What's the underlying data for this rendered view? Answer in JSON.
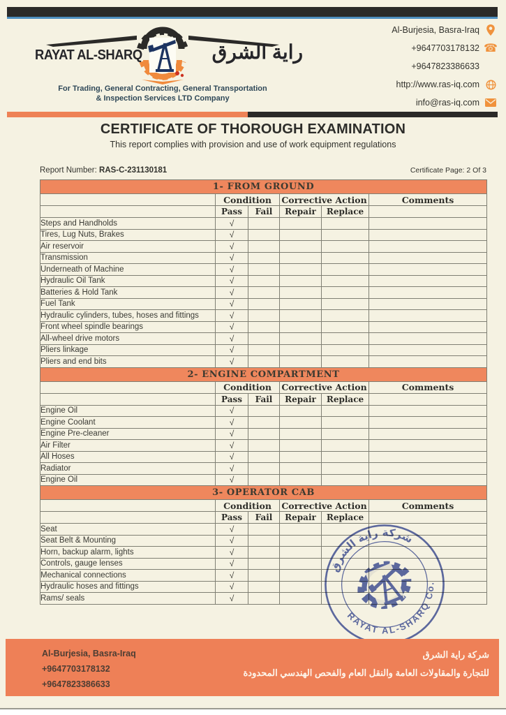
{
  "brand": {
    "name_en": "RAYAT AL-SHARQ",
    "name_ar": "راية الشرق",
    "tagline_line1": "For Trading, General Contracting, General Transportation",
    "tagline_line2": "& Inspection Services LTD Company"
  },
  "contact": {
    "address": "Al-Burjesia, Basra-Iraq",
    "phone1": "+9647703178132",
    "phone2": "+9647823386633",
    "website": "http://www.ras-iq.com",
    "email": "info@ras-iq.com",
    "icons": [
      "location-pin-icon",
      "phone-icon",
      "globe-icon",
      "envelope-icon"
    ]
  },
  "title": "CERTIFICATE OF THOROUGH EXAMINATION",
  "subtitle": "This report complies with provision and use of work equipment regulations",
  "report": {
    "number_label": "Report Number: ",
    "number": "RAS-C-231130181",
    "page_label": "Certificate Page: ",
    "page": "2 Of 3"
  },
  "table": {
    "col_headers": {
      "condition": "Condition",
      "corrective": "Corrective Action",
      "comments": "Comments",
      "pass": "Pass",
      "fail": "Fail",
      "repair": "Repair",
      "replace": "Replace"
    },
    "sections": [
      {
        "title": "1-  FROM GROUND",
        "items": [
          {
            "name": "Steps and Handholds",
            "pass": "√",
            "fail": "",
            "repair": "",
            "replace": "",
            "comments": ""
          },
          {
            "name": "Tires, Lug Nuts, Brakes",
            "pass": "√",
            "fail": "",
            "repair": "",
            "replace": "",
            "comments": ""
          },
          {
            "name": "Air reservoir",
            "pass": "√",
            "fail": "",
            "repair": "",
            "replace": "",
            "comments": ""
          },
          {
            "name": "Transmission",
            "pass": "√",
            "fail": "",
            "repair": "",
            "replace": "",
            "comments": ""
          },
          {
            "name": "Underneath of Machine",
            "pass": "√",
            "fail": "",
            "repair": "",
            "replace": "",
            "comments": ""
          },
          {
            "name": "Hydraulic Oil Tank",
            "pass": "√",
            "fail": "",
            "repair": "",
            "replace": "",
            "comments": ""
          },
          {
            "name": "Batteries & Hold Tank",
            "pass": "√",
            "fail": "",
            "repair": "",
            "replace": "",
            "comments": ""
          },
          {
            "name": "Fuel Tank",
            "pass": "√",
            "fail": "",
            "repair": "",
            "replace": "",
            "comments": ""
          },
          {
            "name": "Hydraulic cylinders, tubes, hoses and fittings",
            "pass": "√",
            "fail": "",
            "repair": "",
            "replace": "",
            "comments": ""
          },
          {
            "name": "Front wheel spindle bearings",
            "pass": "√",
            "fail": "",
            "repair": "",
            "replace": "",
            "comments": ""
          },
          {
            "name": "All-wheel drive motors",
            "pass": "√",
            "fail": "",
            "repair": "",
            "replace": "",
            "comments": ""
          },
          {
            "name": "Pliers linkage",
            "pass": "√",
            "fail": "",
            "repair": "",
            "replace": "",
            "comments": ""
          },
          {
            "name": "Pliers and end bits",
            "pass": "√",
            "fail": "",
            "repair": "",
            "replace": "",
            "comments": ""
          }
        ]
      },
      {
        "title": "2-  ENGINE COMPARTMENT",
        "items": [
          {
            "name": "Engine Oil",
            "pass": "√",
            "fail": "",
            "repair": "",
            "replace": "",
            "comments": ""
          },
          {
            "name": "Engine Coolant",
            "pass": "√",
            "fail": "",
            "repair": "",
            "replace": "",
            "comments": ""
          },
          {
            "name": "Engine Pre-cleaner",
            "pass": "√",
            "fail": "",
            "repair": "",
            "replace": "",
            "comments": ""
          },
          {
            "name": "Air Filter",
            "pass": "√",
            "fail": "",
            "repair": "",
            "replace": "",
            "comments": ""
          },
          {
            "name": "All Hoses",
            "pass": "√",
            "fail": "",
            "repair": "",
            "replace": "",
            "comments": ""
          },
          {
            "name": "Radiator",
            "pass": "√",
            "fail": "",
            "repair": "",
            "replace": "",
            "comments": ""
          },
          {
            "name": "Engine Oil",
            "pass": "√",
            "fail": "",
            "repair": "",
            "replace": "",
            "comments": ""
          }
        ]
      },
      {
        "title": "3-  OPERATOR CAB",
        "items": [
          {
            "name": "Seat",
            "pass": "√",
            "fail": "",
            "repair": "",
            "replace": "",
            "comments": ""
          },
          {
            "name": "Seat Belt & Mounting",
            "pass": "√",
            "fail": "",
            "repair": "",
            "replace": "",
            "comments": ""
          },
          {
            "name": "Horn, backup alarm, lights",
            "pass": "√",
            "fail": "",
            "repair": "",
            "replace": "",
            "comments": ""
          },
          {
            "name": "Controls, gauge lenses",
            "pass": "√",
            "fail": "",
            "repair": "",
            "replace": "",
            "comments": ""
          },
          {
            "name": "Mechanical connections",
            "pass": "√",
            "fail": "",
            "repair": "",
            "replace": "",
            "comments": ""
          },
          {
            "name": "Hydraulic hoses and fittings",
            "pass": "√",
            "fail": "",
            "repair": "",
            "replace": "",
            "comments": ""
          },
          {
            "name": "Rams/ seals",
            "pass": "√",
            "fail": "",
            "repair": "",
            "replace": "",
            "comments": ""
          }
        ]
      }
    ]
  },
  "stamp": {
    "top_text_ar": "شركة راية الشرق",
    "bottom_text": "RAYAT AL-SHARQ Co.",
    "color": "#3D4EA0"
  },
  "footer": {
    "address": "Al-Burjesia, Basra-Iraq",
    "phone1": "+9647703178132",
    "phone2": "+9647823386633",
    "company_ar_line1": "شركة راية الشرق",
    "company_ar_line2": "للتجارة والمقاولات العامة والنقل العام والفحص الهندسي المحدودة"
  },
  "colors": {
    "accent_orange": "#EE8256",
    "bar_black": "#2B2A28",
    "line_blue": "#4E8FC0",
    "icon_orange": "#F0923C",
    "stamp_blue": "#3D4EA0",
    "page_cream": "#F5F2E2"
  }
}
